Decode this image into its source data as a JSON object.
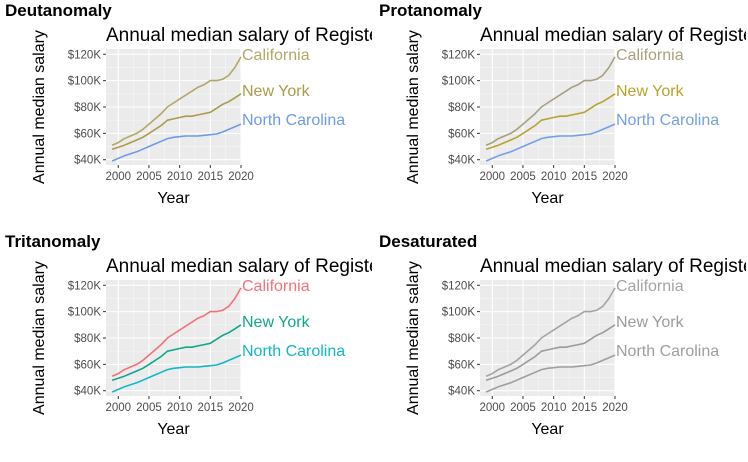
{
  "panels": [
    {
      "id": "deutanomaly",
      "heading": "Deutanomaly",
      "colors": [
        "#b4a767",
        "#ab9b4a",
        "#6c9ce8"
      ]
    },
    {
      "id": "protanomaly",
      "heading": "Protanomaly",
      "colors": [
        "#a8a07d",
        "#b8a32c",
        "#749fe7"
      ]
    },
    {
      "id": "tritanomaly",
      "heading": "Tritanomaly",
      "colors": [
        "#f6707a",
        "#10a68e",
        "#10b8c8"
      ]
    },
    {
      "id": "desaturated",
      "heading": "Desaturated",
      "colors": [
        "#a4a4a4",
        "#9b9b9b",
        "#9e9e9e"
      ]
    }
  ],
  "chart_data": {
    "type": "line",
    "title": "Annual median salary of Registered Nurses",
    "xlabel": "Year",
    "ylabel": "Annual median salary",
    "xlim": [
      1998,
      2020
    ],
    "ylim": [
      36000,
      124000
    ],
    "xticks": [
      2000,
      2005,
      2010,
      2015,
      2020
    ],
    "yticks": [
      40000,
      60000,
      80000,
      100000,
      120000
    ],
    "ytick_labels": [
      "$40K",
      "$60K",
      "$80K",
      "$100K",
      "$120K"
    ],
    "grid": true,
    "x": [
      1999,
      2000,
      2001,
      2002,
      2003,
      2004,
      2005,
      2006,
      2007,
      2008,
      2009,
      2010,
      2011,
      2012,
      2013,
      2014,
      2015,
      2016,
      2017,
      2018,
      2019,
      2020
    ],
    "series": [
      {
        "name": "California",
        "values": [
          51000,
          53000,
          56000,
          58000,
          60000,
          63000,
          67000,
          71000,
          75000,
          80000,
          83000,
          86000,
          89000,
          92000,
          95000,
          97000,
          100000,
          100000,
          101000,
          104000,
          110000,
          118000
        ]
      },
      {
        "name": "New York",
        "values": [
          48000,
          49500,
          51000,
          53000,
          55000,
          57000,
          60000,
          63000,
          66000,
          70000,
          71000,
          72000,
          73000,
          73000,
          74000,
          75000,
          76000,
          79000,
          82000,
          84000,
          87000,
          90000
        ]
      },
      {
        "name": "North Carolina",
        "values": [
          39000,
          41000,
          43000,
          44500,
          46000,
          48000,
          50000,
          52000,
          54000,
          56000,
          57000,
          57500,
          58000,
          58000,
          58000,
          58500,
          59000,
          59500,
          61000,
          63000,
          65000,
          67000
        ]
      }
    ]
  }
}
